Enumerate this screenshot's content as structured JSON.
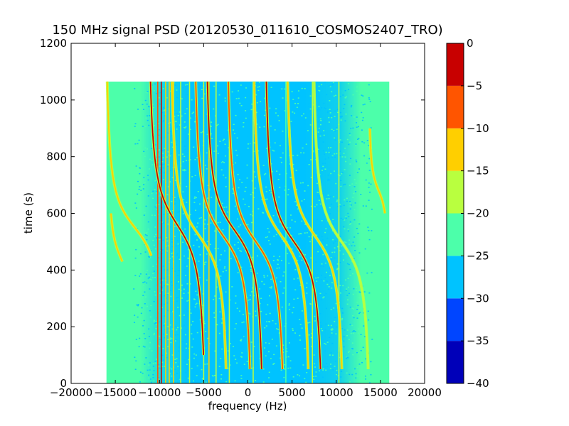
{
  "chart_data": {
    "type": "heatmap",
    "title": "150 MHz signal PSD (20120530_011610_COSMOS2407_TRO)",
    "xlabel": "frequency (Hz)",
    "ylabel": "time (s)",
    "xlim": [
      -20000,
      20000
    ],
    "ylim": [
      0,
      1200
    ],
    "xticks": [
      -20000,
      -15000,
      -10000,
      -5000,
      0,
      5000,
      10000,
      15000,
      20000
    ],
    "xtick_labels": [
      "−20000",
      "−15000",
      "−10000",
      "−5000",
      "0",
      "5000",
      "10000",
      "15000",
      "20000"
    ],
    "yticks": [
      0,
      200,
      400,
      600,
      800,
      1000,
      1200
    ],
    "ytick_labels": [
      "0",
      "200",
      "400",
      "600",
      "800",
      "1000",
      "1200"
    ],
    "data_extent": {
      "freq": [
        -16000,
        16000
      ],
      "time": [
        0,
        1065
      ]
    },
    "background_level": -22.5,
    "colorbar": {
      "levels": [
        -40,
        -35,
        -30,
        -25,
        -20,
        -15,
        -10,
        -5,
        0
      ],
      "tick_labels": [
        "−40",
        "−35",
        "−30",
        "−25",
        "−20",
        "−15",
        "−10",
        "−5",
        "0"
      ],
      "colors": [
        "#0000b9",
        "#0045ff",
        "#00c3ff",
        "#4cffaa",
        "#b9ff3f",
        "#ffcf00",
        "#ff5500",
        "#c80000"
      ]
    },
    "vertical_lines": [
      {
        "freq": -10200,
        "level": -10
      },
      {
        "freq": -9800,
        "level": -5
      },
      {
        "freq": -9300,
        "level": -15
      },
      {
        "freq": -8900,
        "level": -15
      },
      {
        "freq": -8400,
        "level": -15
      },
      {
        "freq": -7600,
        "level": -20
      },
      {
        "freq": -6600,
        "level": -20
      },
      {
        "freq": -5000,
        "level": -20
      },
      {
        "freq": -4400,
        "level": -15
      },
      {
        "freq": -3600,
        "level": -20
      },
      {
        "freq": -2100,
        "level": -20
      },
      {
        "freq": 600,
        "level": -20
      },
      {
        "freq": 4300,
        "level": -25
      },
      {
        "freq": 7300,
        "level": -20
      },
      {
        "freq": 10300,
        "level": -20
      }
    ],
    "doppler_tracks": [
      {
        "f0": -12800,
        "t0": 550,
        "amp": 3500,
        "scale": 90,
        "t_range": [
          450,
          1065
        ],
        "level": -15
      },
      {
        "f0": -14200,
        "t0": 430,
        "amp": 1800,
        "scale": 80,
        "t_range": [
          430,
          600
        ],
        "level": -15
      },
      {
        "f0": -8000,
        "t0": 560,
        "amp": 3500,
        "scale": 110,
        "t_range": [
          100,
          1065
        ],
        "level": -5
      },
      {
        "f0": -5500,
        "t0": 520,
        "amp": 3500,
        "scale": 100,
        "t_range": [
          50,
          1065
        ],
        "level": -15
      },
      {
        "f0": -2800,
        "t0": 520,
        "amp": 3500,
        "scale": 100,
        "t_range": [
          50,
          1065
        ],
        "level": -10
      },
      {
        "f0": -1500,
        "t0": 540,
        "amp": 3500,
        "scale": 100,
        "t_range": [
          50,
          1065
        ],
        "level": -5
      },
      {
        "f0": 900,
        "t0": 500,
        "amp": 3500,
        "scale": 100,
        "t_range": [
          50,
          1065
        ],
        "level": -10
      },
      {
        "f0": 3800,
        "t0": 520,
        "amp": 3500,
        "scale": 100,
        "t_range": [
          50,
          1065
        ],
        "level": -15
      },
      {
        "f0": 5200,
        "t0": 500,
        "amp": 3500,
        "scale": 100,
        "t_range": [
          50,
          1065
        ],
        "level": -5
      },
      {
        "f0": 7600,
        "t0": 520,
        "amp": 3500,
        "scale": 100,
        "t_range": [
          50,
          1065
        ],
        "level": -15
      },
      {
        "f0": 10600,
        "t0": 500,
        "amp": 3500,
        "scale": 100,
        "t_range": [
          50,
          1065
        ],
        "level": -20
      },
      {
        "f0": 14800,
        "t0": 680,
        "amp": 1200,
        "scale": 60,
        "t_range": [
          600,
          900
        ],
        "level": -15
      }
    ]
  }
}
